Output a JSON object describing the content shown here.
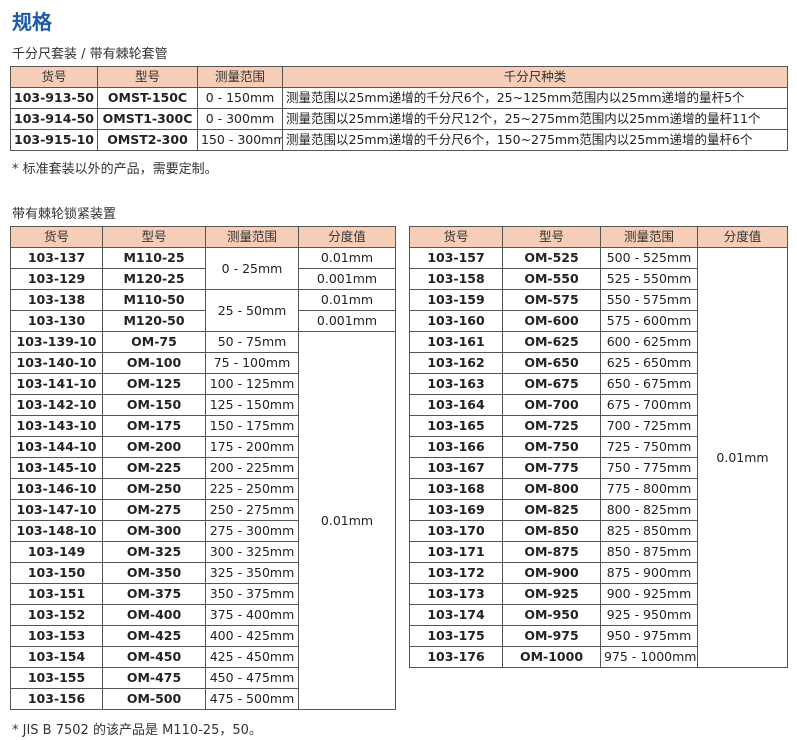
{
  "title": "规格",
  "set_section": {
    "caption": "千分尺套装 / 带有棘轮套管",
    "table": {
      "header": [
        "货号",
        "型号",
        "测量范围",
        "千分尺种类"
      ],
      "rows": [
        [
          "103-913-50",
          "OMST-150C",
          "0 - 150mm",
          "测量范围以25mm递增的千分尺6个，25~125mm范围内以25mm递增的量杆5个"
        ],
        [
          "103-914-50",
          "OMST1-300C",
          "0 - 300mm",
          "测量范围以25mm递增的千分尺12个，25~275mm范围内以25mm递增的量杆11个"
        ],
        [
          "103-915-10",
          "OMST2-300",
          "150 - 300mm",
          "测量范围以25mm递增的千分尺6个，150~275mm范围内以25mm递增的量杆6个"
        ]
      ]
    },
    "note": "* 标准套装以外的产品，需要定制。"
  },
  "ratchet_section": {
    "caption": "带有棘轮锁紧装置",
    "left_table": {
      "header": [
        "货号",
        "型号",
        "测量范围",
        "分度值"
      ],
      "rows": [
        [
          "103-137",
          "M110-25",
          "0 - 25mm",
          "0.01mm"
        ],
        [
          "103-129",
          "M120-25",
          null,
          "0.001mm"
        ],
        [
          "103-138",
          "M110-50",
          "25 - 50mm",
          "0.01mm"
        ],
        [
          "103-130",
          "M120-50",
          null,
          "0.001mm"
        ],
        [
          "103-139-10",
          "OM-75",
          "50 - 75mm",
          "0.01mm"
        ],
        [
          "103-140-10",
          "OM-100",
          "75 - 100mm",
          null
        ],
        [
          "103-141-10",
          "OM-125",
          "100 - 125mm",
          null
        ],
        [
          "103-142-10",
          "OM-150",
          "125 - 150mm",
          null
        ],
        [
          "103-143-10",
          "OM-175",
          "150 - 175mm",
          null
        ],
        [
          "103-144-10",
          "OM-200",
          "175 - 200mm",
          null
        ],
        [
          "103-145-10",
          "OM-225",
          "200 - 225mm",
          null
        ],
        [
          "103-146-10",
          "OM-250",
          "225 - 250mm",
          null
        ],
        [
          "103-147-10",
          "OM-275",
          "250 - 275mm",
          null
        ],
        [
          "103-148-10",
          "OM-300",
          "275 - 300mm",
          null
        ],
        [
          "103-149",
          "OM-325",
          "300 - 325mm",
          null
        ],
        [
          "103-150",
          "OM-350",
          "325 - 350mm",
          null
        ],
        [
          "103-151",
          "OM-375",
          "350 - 375mm",
          null
        ],
        [
          "103-152",
          "OM-400",
          "375 - 400mm",
          null
        ],
        [
          "103-153",
          "OM-425",
          "400 - 425mm",
          null
        ],
        [
          "103-154",
          "OM-450",
          "425 - 450mm",
          null
        ],
        [
          "103-155",
          "OM-475",
          "450 - 475mm",
          null
        ],
        [
          "103-156",
          "OM-500",
          "475 - 500mm",
          null
        ]
      ]
    },
    "right_table": {
      "header": [
        "货号",
        "型号",
        "测量范围",
        "分度值"
      ],
      "rows": [
        [
          "103-157",
          "OM-525",
          "500 - 525mm",
          "0.01mm"
        ],
        [
          "103-158",
          "OM-550",
          "525 - 550mm",
          null
        ],
        [
          "103-159",
          "OM-575",
          "550 - 575mm",
          null
        ],
        [
          "103-160",
          "OM-600",
          "575 - 600mm",
          null
        ],
        [
          "103-161",
          "OM-625",
          "600 - 625mm",
          null
        ],
        [
          "103-162",
          "OM-650",
          "625 - 650mm",
          null
        ],
        [
          "103-163",
          "OM-675",
          "650 - 675mm",
          null
        ],
        [
          "103-164",
          "OM-700",
          "675 - 700mm",
          null
        ],
        [
          "103-165",
          "OM-725",
          "700 - 725mm",
          null
        ],
        [
          "103-166",
          "OM-750",
          "725 - 750mm",
          null
        ],
        [
          "103-167",
          "OM-775",
          "750 - 775mm",
          null
        ],
        [
          "103-168",
          "OM-800",
          "775 - 800mm",
          null
        ],
        [
          "103-169",
          "OM-825",
          "800 - 825mm",
          null
        ],
        [
          "103-170",
          "OM-850",
          "825 - 850mm",
          null
        ],
        [
          "103-171",
          "OM-875",
          "850 - 875mm",
          null
        ],
        [
          "103-172",
          "OM-900",
          "875 - 900mm",
          null
        ],
        [
          "103-173",
          "OM-925",
          "900 - 925mm",
          null
        ],
        [
          "103-174",
          "OM-950",
          "925 - 950mm",
          null
        ],
        [
          "103-175",
          "OM-975",
          "950 - 975mm",
          null
        ],
        [
          "103-176",
          "OM-1000",
          "975 - 1000mm",
          null
        ]
      ]
    },
    "note": "* JIS B 7502 的该产品是 M110-25，50。"
  }
}
